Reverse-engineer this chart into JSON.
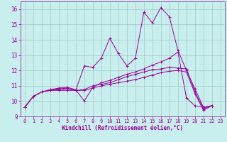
{
  "background_color": "#c8eeee",
  "grid_color": "#a0c8c8",
  "line_color": "#990099",
  "xlabel": "Windchill (Refroidissement éolien,°C)",
  "xlim": [
    -0.5,
    23.5
  ],
  "ylim": [
    9,
    16.5
  ],
  "yticks": [
    9,
    10,
    11,
    12,
    13,
    14,
    15,
    16
  ],
  "xticks": [
    0,
    1,
    2,
    3,
    4,
    5,
    6,
    7,
    8,
    9,
    10,
    11,
    12,
    13,
    14,
    15,
    16,
    17,
    18,
    19,
    20,
    21,
    22,
    23
  ],
  "series": [
    [
      9.6,
      10.3,
      10.6,
      10.7,
      10.7,
      10.7,
      10.7,
      12.3,
      12.2,
      12.8,
      14.1,
      13.1,
      12.3,
      12.8,
      15.8,
      15.1,
      16.1,
      15.5,
      13.3,
      12.0,
      10.8,
      9.6,
      9.7
    ],
    [
      9.6,
      10.3,
      10.6,
      10.75,
      10.85,
      10.9,
      10.75,
      10.0,
      10.9,
      11.2,
      11.35,
      11.55,
      11.75,
      11.9,
      12.1,
      12.35,
      12.55,
      12.8,
      13.2,
      10.2,
      9.7,
      9.6,
      9.7
    ],
    [
      9.6,
      10.3,
      10.6,
      10.7,
      10.8,
      10.85,
      10.7,
      10.75,
      11.0,
      11.1,
      11.2,
      11.4,
      11.6,
      11.75,
      11.9,
      12.05,
      12.1,
      12.2,
      12.15,
      12.1,
      10.6,
      9.5,
      9.7
    ],
    [
      9.6,
      10.3,
      10.6,
      10.7,
      10.75,
      10.8,
      10.7,
      10.7,
      10.85,
      11.0,
      11.1,
      11.2,
      11.3,
      11.4,
      11.55,
      11.7,
      11.85,
      11.95,
      12.0,
      11.9,
      10.5,
      9.4,
      9.7
    ]
  ]
}
